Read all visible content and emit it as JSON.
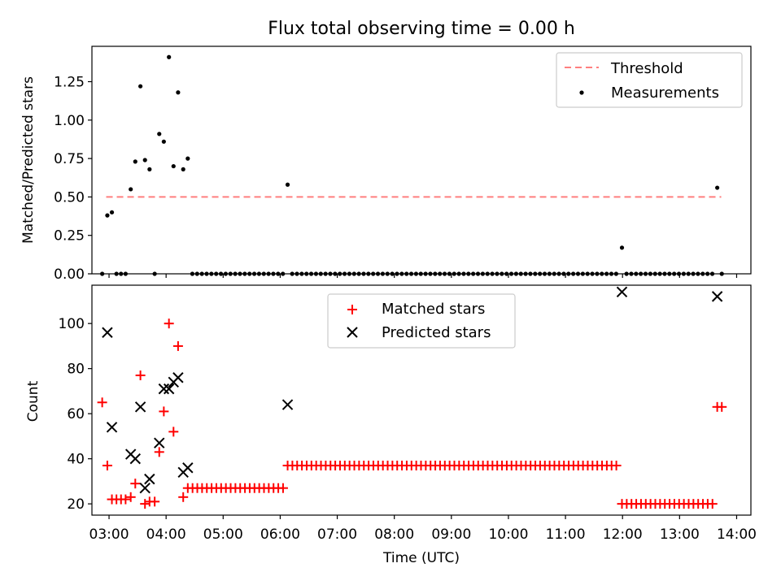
{
  "title": "Flux total observing time = 0.00 h",
  "chart_data": [
    {
      "type": "scatter",
      "ylabel": "Matched/Predicted stars",
      "ylim": [
        0,
        1.48
      ],
      "yticks": [
        "0.00",
        "0.25",
        "0.50",
        "0.75",
        "1.00",
        "1.25"
      ],
      "ytick_values": [
        0,
        0.25,
        0.5,
        0.75,
        1.0,
        1.25
      ],
      "xlim": [
        2.7,
        14.25
      ],
      "legend_position": "upper right",
      "series": [
        {
          "name": "Threshold",
          "kind": "line",
          "style": "dashed",
          "color": "#ff7f7f",
          "x": [
            2.95,
            13.73
          ],
          "y": [
            0.5,
            0.5
          ]
        },
        {
          "name": "Measurements",
          "kind": "scatter",
          "marker": "dot",
          "color": "#000000",
          "points": [
            [
              2.88,
              0.0
            ],
            [
              2.97,
              0.38
            ],
            [
              3.05,
              0.4
            ],
            [
              3.13,
              0.0
            ],
            [
              3.21,
              0.0
            ],
            [
              3.29,
              0.0
            ],
            [
              3.38,
              0.55
            ],
            [
              3.46,
              0.73
            ],
            [
              3.55,
              1.22
            ],
            [
              3.63,
              0.74
            ],
            [
              3.71,
              0.68
            ],
            [
              3.8,
              0.0
            ],
            [
              3.88,
              0.91
            ],
            [
              3.96,
              0.86
            ],
            [
              4.05,
              1.41
            ],
            [
              4.13,
              0.7
            ],
            [
              4.21,
              1.18
            ],
            [
              4.3,
              0.68
            ],
            [
              4.38,
              0.75
            ],
            [
              6.13,
              0.58
            ],
            [
              11.99,
              0.17
            ],
            [
              13.66,
              0.56
            ]
          ],
          "zero_runs": [
            {
              "from": 4.46,
              "to": 6.05,
              "step": 0.0835
            },
            {
              "from": 6.21,
              "to": 11.91,
              "step": 0.0835
            },
            {
              "from": 12.07,
              "to": 13.58,
              "step": 0.0835
            },
            {
              "from": 13.74,
              "to": 13.74,
              "step": 0.0835
            }
          ]
        }
      ]
    },
    {
      "type": "scatter",
      "xlabel": "Time (UTC)",
      "ylabel": "Count",
      "ylim": [
        15,
        117
      ],
      "yticks": [
        "20",
        "40",
        "60",
        "80",
        "100"
      ],
      "ytick_values": [
        20,
        40,
        60,
        80,
        100
      ],
      "xlim": [
        2.7,
        14.25
      ],
      "xticks": [
        "03:00",
        "04:00",
        "05:00",
        "06:00",
        "07:00",
        "08:00",
        "09:00",
        "10:00",
        "11:00",
        "12:00",
        "13:00",
        "14:00"
      ],
      "xtick_values": [
        3,
        4,
        5,
        6,
        7,
        8,
        9,
        10,
        11,
        12,
        13,
        14
      ],
      "legend_position": "upper center",
      "series": [
        {
          "name": "Matched stars",
          "marker": "plus",
          "color": "#ff0000",
          "points": [
            [
              2.88,
              65
            ],
            [
              2.97,
              37
            ],
            [
              3.05,
              22
            ],
            [
              3.13,
              22
            ],
            [
              3.21,
              22
            ],
            [
              3.29,
              22
            ],
            [
              3.38,
              23
            ],
            [
              3.46,
              29
            ],
            [
              3.55,
              77
            ],
            [
              3.63,
              20
            ],
            [
              3.71,
              21
            ],
            [
              3.8,
              21
            ],
            [
              3.88,
              43
            ],
            [
              3.96,
              61
            ],
            [
              4.05,
              100
            ],
            [
              4.13,
              52
            ],
            [
              4.21,
              90
            ],
            [
              4.3,
              23
            ],
            [
              13.66,
              63
            ],
            [
              13.74,
              63
            ]
          ],
          "constant_runs": [
            {
              "from": 4.38,
              "to": 6.05,
              "step": 0.0835,
              "value": 27
            },
            {
              "from": 6.13,
              "to": 11.91,
              "step": 0.0835,
              "value": 37
            },
            {
              "from": 11.99,
              "to": 13.58,
              "step": 0.0835,
              "value": 20
            }
          ]
        },
        {
          "name": "Predicted stars",
          "marker": "x",
          "color": "#000000",
          "points": [
            [
              2.97,
              96
            ],
            [
              3.05,
              54
            ],
            [
              3.38,
              42
            ],
            [
              3.46,
              40
            ],
            [
              3.55,
              63
            ],
            [
              3.63,
              27
            ],
            [
              3.71,
              31
            ],
            [
              3.88,
              47
            ],
            [
              3.96,
              71
            ],
            [
              4.05,
              71
            ],
            [
              4.13,
              74
            ],
            [
              4.21,
              76
            ],
            [
              4.3,
              34
            ],
            [
              4.38,
              36
            ],
            [
              6.13,
              64
            ],
            [
              11.99,
              114
            ],
            [
              13.66,
              112
            ]
          ]
        }
      ]
    }
  ]
}
